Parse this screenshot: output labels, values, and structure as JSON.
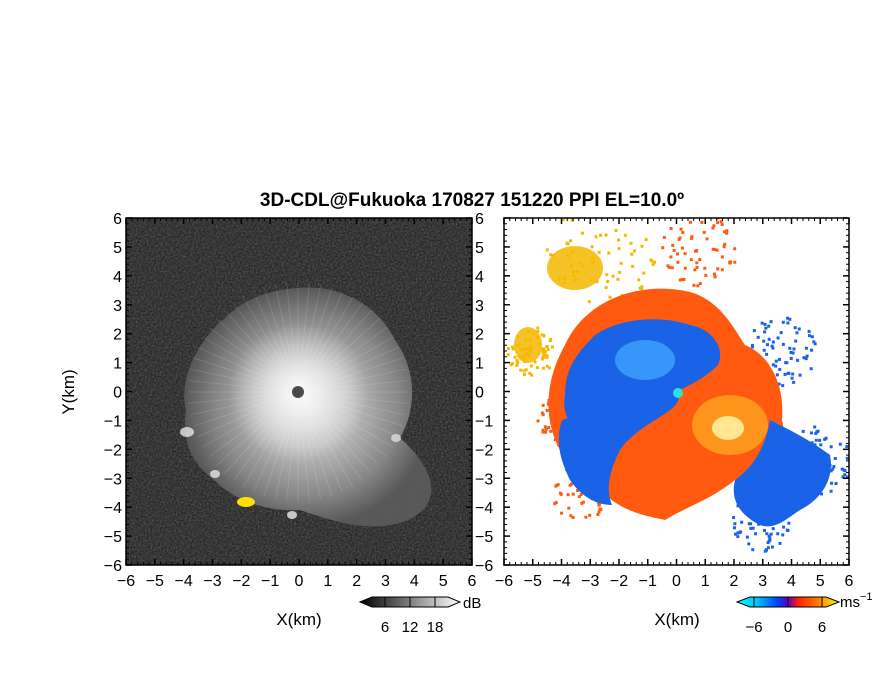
{
  "title": "3D-CDL@Fukuoka 170827 151220 PPI EL=10.0º",
  "chart_data": [
    {
      "type": "heatmap",
      "field": "reflectivity",
      "xlabel": "X(km)",
      "ylabel": "Y(km)",
      "xlim": [
        -6,
        6
      ],
      "ylim": [
        -6,
        6
      ],
      "xticks": [
        "−6",
        "−5",
        "−4",
        "−3",
        "−2",
        "−1",
        "0",
        "1",
        "2",
        "3",
        "4",
        "5",
        "6"
      ],
      "yticks": [
        "−6",
        "−5",
        "−4",
        "−3",
        "−2",
        "−1",
        "0",
        "1",
        "2",
        "3",
        "4",
        "5",
        "6"
      ],
      "colormap": "grayscale",
      "colorbar": {
        "unit": "dB",
        "range": [
          0,
          24
        ],
        "ticks": [
          "6",
          "12",
          "18"
        ]
      },
      "radar_center": [
        0,
        0
      ],
      "echo_radius_km": 4.3,
      "strong_echo_spot": {
        "x": -1.9,
        "y": -3.8,
        "color": "#ffe000"
      }
    },
    {
      "type": "heatmap",
      "field": "doppler_velocity",
      "xlabel": "X(km)",
      "ylabel": "",
      "xlim": [
        -6,
        6
      ],
      "ylim": [
        -6,
        6
      ],
      "xticks": [
        "−6",
        "−5",
        "−4",
        "−3",
        "−2",
        "−1",
        "0",
        "1",
        "2",
        "3",
        "4",
        "5",
        "6"
      ],
      "yticks": [
        "−6",
        "−5",
        "−4",
        "−3",
        "−2",
        "−1",
        "0",
        "1",
        "2",
        "3",
        "4",
        "5",
        "6"
      ],
      "colormap": "diverging blue-white-red",
      "colorbar": {
        "unit": "ms",
        "unit_exponent": "−1",
        "range": [
          -9,
          9
        ],
        "ticks": [
          "−6",
          "0",
          "6"
        ]
      },
      "regions": [
        {
          "sign": "negative",
          "color": "#1060e0",
          "description_sector": "northwest and southeast"
        },
        {
          "sign": "positive",
          "color": "#ff6010",
          "description_sector": "southwest and northeast"
        }
      ]
    }
  ]
}
